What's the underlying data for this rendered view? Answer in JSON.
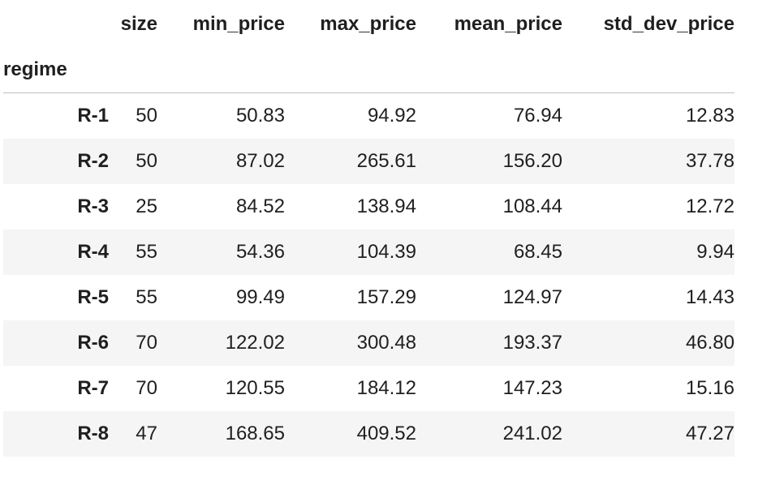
{
  "table": {
    "index_name": "regime",
    "columns": [
      "size",
      "min_price",
      "max_price",
      "mean_price",
      "std_dev_price"
    ],
    "rows": [
      {
        "label": "R-1",
        "cells": [
          "50",
          "50.83",
          "94.92",
          "76.94",
          "12.83"
        ]
      },
      {
        "label": "R-2",
        "cells": [
          "50",
          "87.02",
          "265.61",
          "156.20",
          "37.78"
        ]
      },
      {
        "label": "R-3",
        "cells": [
          "25",
          "84.52",
          "138.94",
          "108.44",
          "12.72"
        ]
      },
      {
        "label": "R-4",
        "cells": [
          "55",
          "54.36",
          "104.39",
          "68.45",
          "9.94"
        ]
      },
      {
        "label": "R-5",
        "cells": [
          "55",
          "99.49",
          "157.29",
          "124.97",
          "14.43"
        ]
      },
      {
        "label": "R-6",
        "cells": [
          "70",
          "122.02",
          "300.48",
          "193.37",
          "46.80"
        ]
      },
      {
        "label": "R-7",
        "cells": [
          "70",
          "120.55",
          "184.12",
          "147.23",
          "15.16"
        ]
      },
      {
        "label": "R-8",
        "cells": [
          "47",
          "168.65",
          "409.52",
          "241.02",
          "47.27"
        ]
      }
    ]
  },
  "colors": {
    "text": "#1f1f1f",
    "stripe": "#f5f5f5",
    "rule": "#bdbdbd"
  }
}
